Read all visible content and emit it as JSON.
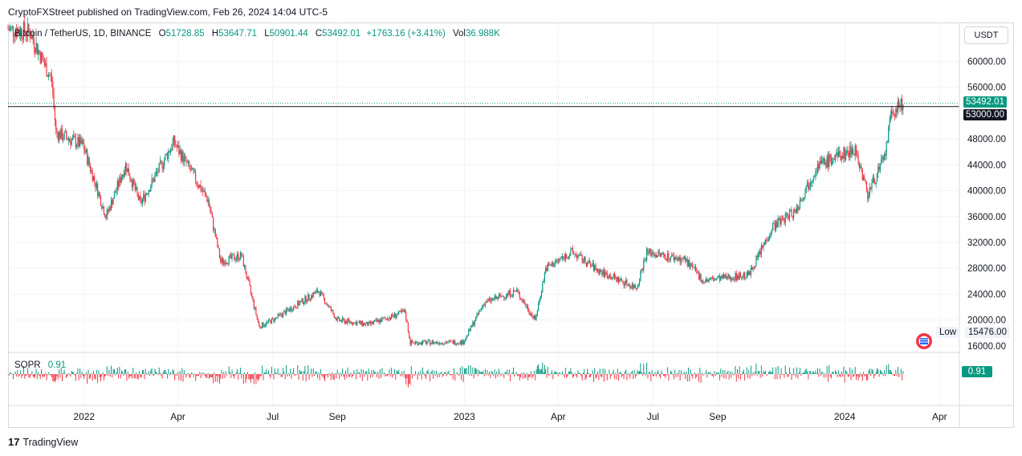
{
  "header": {
    "published": "CryptoFXStreet published on TradingView.com, Feb 26, 2024 14:04 UTC-5"
  },
  "legend": {
    "symbol": "Bitcoin / TetherUS, 1D, BINANCE",
    "open_label": "O",
    "open": "51728.85",
    "high_label": "H",
    "high": "53647.71",
    "low_label": "L",
    "low": "50901.44",
    "close_label": "C",
    "close": "53492.01",
    "change": "+1763.16 (+3.41%)",
    "vol_label": "Vol",
    "vol": "36.988K"
  },
  "price_axis": {
    "currency_button": "USDT",
    "last_price_tag": "53492.01",
    "level_tag": "53000.00",
    "low_label": "Low",
    "low_value": "15476.00"
  },
  "indicator": {
    "name": "SOPR",
    "value": "0.91",
    "tag": "0.91"
  },
  "footer": {
    "brand": "TradingView",
    "logo": "17"
  },
  "colors": {
    "up": "#089981",
    "down": "#f23645",
    "line": "#131722",
    "grid": "#f0f3fa"
  },
  "chart_data": {
    "type": "candlestick",
    "ylim": [
      15000,
      66000
    ],
    "yticks": [
      "60000.00",
      "56000.00",
      "48000.00",
      "44000.00",
      "40000.00",
      "36000.00",
      "32000.00",
      "28000.00",
      "24000.00",
      "20000.00",
      "16000.00"
    ],
    "ytick_values": [
      60000,
      56000,
      48000,
      44000,
      40000,
      36000,
      32000,
      28000,
      24000,
      20000,
      16000
    ],
    "xticks": [
      {
        "label": "2022",
        "date": "2022-01-01"
      },
      {
        "label": "Apr",
        "date": "2022-04-01"
      },
      {
        "label": "Jul",
        "date": "2022-07-01"
      },
      {
        "label": "Sep",
        "date": "2022-09-01"
      },
      {
        "label": "2023",
        "date": "2023-01-01"
      },
      {
        "label": "Apr",
        "date": "2023-04-01"
      },
      {
        "label": "Jul",
        "date": "2023-07-01"
      },
      {
        "label": "Sep",
        "date": "2023-09-01"
      },
      {
        "label": "2024",
        "date": "2024-01-01"
      },
      {
        "label": "Apr",
        "date": "2024-04-01"
      }
    ],
    "x_range": [
      "2021-10-20",
      "2024-04-20"
    ],
    "horizontal_line": 53000,
    "last_price": 53492.01,
    "series": [
      {
        "date": "2021-10-20",
        "close": 65000
      },
      {
        "date": "2021-11-10",
        "close": 64500
      },
      {
        "date": "2021-12-01",
        "close": 57000
      },
      {
        "date": "2021-12-05",
        "close": 49000
      },
      {
        "date": "2021-12-31",
        "close": 47000
      },
      {
        "date": "2022-01-22",
        "close": 36000
      },
      {
        "date": "2022-02-10",
        "close": 44000
      },
      {
        "date": "2022-02-24",
        "close": 38000
      },
      {
        "date": "2022-03-28",
        "close": 47500
      },
      {
        "date": "2022-04-30",
        "close": 38500
      },
      {
        "date": "2022-05-12",
        "close": 29000
      },
      {
        "date": "2022-06-01",
        "close": 30000
      },
      {
        "date": "2022-06-18",
        "close": 19000
      },
      {
        "date": "2022-07-01",
        "close": 20000
      },
      {
        "date": "2022-08-14",
        "close": 24500
      },
      {
        "date": "2022-09-01",
        "close": 20000
      },
      {
        "date": "2022-10-01",
        "close": 19300
      },
      {
        "date": "2022-11-05",
        "close": 21300
      },
      {
        "date": "2022-11-10",
        "close": 16500
      },
      {
        "date": "2022-12-31",
        "close": 16600
      },
      {
        "date": "2023-01-20",
        "close": 22700
      },
      {
        "date": "2023-02-20",
        "close": 24500
      },
      {
        "date": "2023-03-10",
        "close": 20000
      },
      {
        "date": "2023-03-20",
        "close": 28000
      },
      {
        "date": "2023-04-14",
        "close": 30500
      },
      {
        "date": "2023-05-10",
        "close": 27600
      },
      {
        "date": "2023-06-15",
        "close": 25000
      },
      {
        "date": "2023-06-25",
        "close": 30500
      },
      {
        "date": "2023-08-01",
        "close": 29300
      },
      {
        "date": "2023-08-18",
        "close": 26100
      },
      {
        "date": "2023-10-01",
        "close": 27000
      },
      {
        "date": "2023-10-24",
        "close": 34500
      },
      {
        "date": "2023-11-15",
        "close": 37000
      },
      {
        "date": "2023-12-05",
        "close": 43800
      },
      {
        "date": "2024-01-11",
        "close": 46500
      },
      {
        "date": "2024-01-23",
        "close": 39500
      },
      {
        "date": "2024-02-08",
        "close": 45000
      },
      {
        "date": "2024-02-15",
        "close": 52000
      },
      {
        "date": "2024-02-26",
        "close": 53492
      }
    ]
  }
}
